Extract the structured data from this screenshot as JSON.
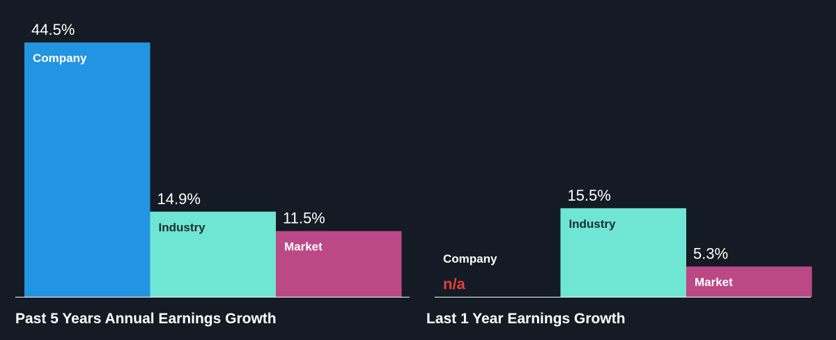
{
  "chart_data": [
    {
      "type": "bar",
      "title": "Past 5 Years Annual Earnings Growth",
      "categories": [
        "Company",
        "Industry",
        "Market"
      ],
      "values": [
        44.5,
        14.9,
        11.5
      ],
      "value_labels": [
        "44.5%",
        "14.9%",
        "11.5%"
      ],
      "colors": [
        "#2394e1",
        "#6fe5d4",
        "#bb4985"
      ],
      "label_colors": [
        "#ffffff",
        "#1c2b34",
        "#ffffff"
      ],
      "ylim": [
        0,
        44.5
      ]
    },
    {
      "type": "bar",
      "title": "Last 1 Year Earnings Growth",
      "categories": [
        "Company",
        "Industry",
        "Market"
      ],
      "values": [
        null,
        15.5,
        5.3
      ],
      "value_labels": [
        "n/a",
        "15.5%",
        "5.3%"
      ],
      "colors": [
        "#2394e1",
        "#6fe5d4",
        "#bb4985"
      ],
      "label_colors": [
        "#ffffff",
        "#1c2b34",
        "#ffffff"
      ],
      "ylim": [
        0,
        44.5
      ]
    }
  ],
  "colors": {
    "background": "#151b24",
    "axis": "#ffffff",
    "na_text": "#e0413b"
  }
}
